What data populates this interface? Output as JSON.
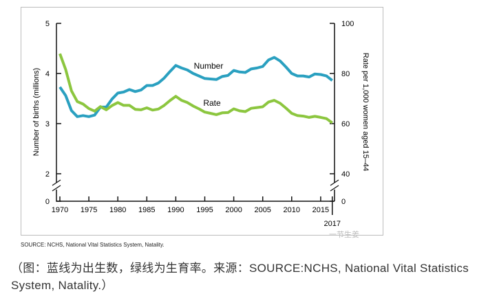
{
  "chart_data": {
    "type": "line",
    "xlabel": "",
    "ylabel": "Number of births (millions)",
    "y2label": "Rate per 1,000 women aged 15–44",
    "x": [
      1970,
      1971,
      1972,
      1973,
      1974,
      1975,
      1976,
      1977,
      1978,
      1979,
      1980,
      1981,
      1982,
      1983,
      1984,
      1985,
      1986,
      1987,
      1988,
      1989,
      1990,
      1991,
      1992,
      1993,
      1994,
      1995,
      1996,
      1997,
      1998,
      1999,
      2000,
      2001,
      2002,
      2003,
      2004,
      2005,
      2006,
      2007,
      2008,
      2009,
      2010,
      2011,
      2012,
      2013,
      2014,
      2015,
      2016,
      2017
    ],
    "xticks": [
      "1970",
      "1975",
      "1980",
      "1985",
      "1990",
      "1995",
      "2000",
      "2005",
      "2010",
      "2015"
    ],
    "xtick_extra": "2017",
    "yticks": [
      "5",
      "4",
      "3",
      "2",
      "0"
    ],
    "y2ticks": [
      "100",
      "80",
      "60",
      "40",
      "0"
    ],
    "ylim": [
      0,
      5
    ],
    "y2lim": [
      0,
      100
    ],
    "axis_break": true,
    "series": [
      {
        "name": "Number",
        "axis": "left",
        "color": "#2aa0c0",
        "values": [
          3.73,
          3.56,
          3.26,
          3.14,
          3.16,
          3.14,
          3.17,
          3.33,
          3.33,
          3.49,
          3.61,
          3.63,
          3.68,
          3.64,
          3.67,
          3.76,
          3.76,
          3.81,
          3.91,
          4.04,
          4.16,
          4.11,
          4.07,
          4.0,
          3.95,
          3.9,
          3.89,
          3.88,
          3.94,
          3.96,
          4.06,
          4.03,
          4.02,
          4.09,
          4.11,
          4.14,
          4.27,
          4.32,
          4.25,
          4.13,
          4.0,
          3.95,
          3.95,
          3.93,
          3.99,
          3.98,
          3.95,
          3.86
        ]
      },
      {
        "name": "Rate",
        "axis": "right",
        "color": "#8cc63f",
        "values": [
          87.9,
          81.6,
          73.1,
          68.8,
          67.8,
          66.0,
          65.0,
          66.8,
          65.5,
          67.2,
          68.4,
          67.3,
          67.3,
          65.7,
          65.5,
          66.3,
          65.4,
          65.8,
          67.3,
          69.2,
          70.9,
          69.3,
          68.4,
          67.0,
          65.9,
          64.6,
          64.1,
          63.6,
          64.3,
          64.4,
          65.9,
          65.1,
          64.8,
          66.1,
          66.4,
          66.7,
          68.6,
          69.3,
          68.1,
          66.2,
          64.1,
          63.2,
          63.0,
          62.5,
          62.9,
          62.5,
          62.0,
          60.3
        ]
      }
    ]
  },
  "source": "SOURCE: NCHS, National Vital Statistics System, Natality.",
  "watermark": "一节生姜",
  "caption": "（图：蓝线为出生数，绿线为生育率。来源：SOURCE:NCHS, National Vital Statistics System, Natality.）"
}
